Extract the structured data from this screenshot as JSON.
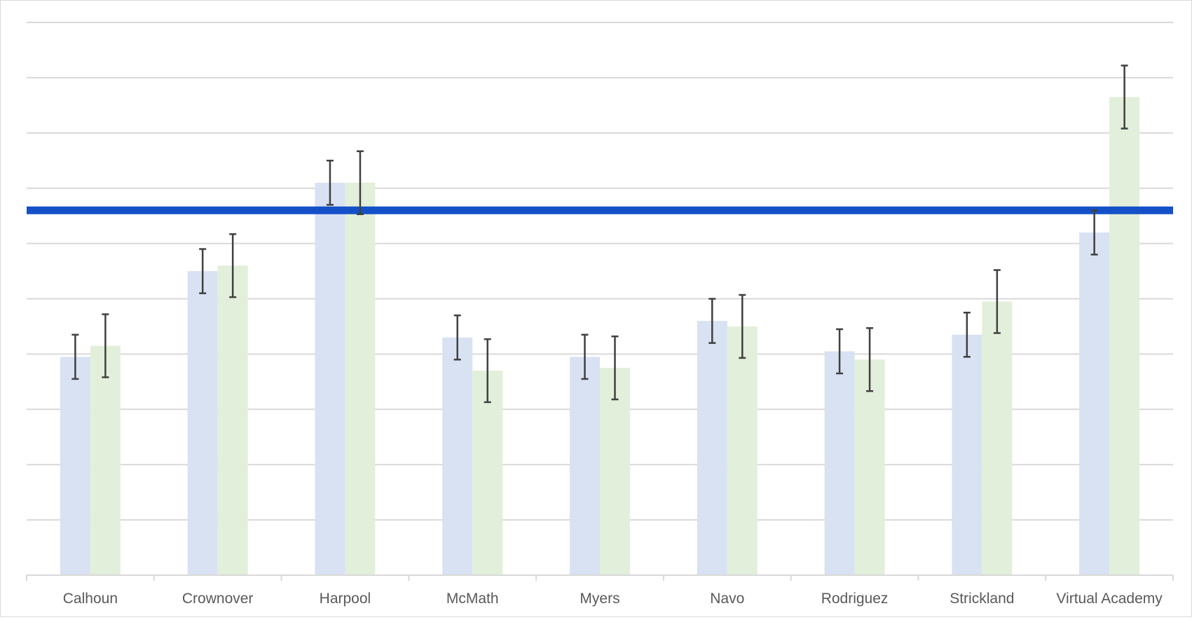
{
  "chart_data": {
    "type": "bar",
    "categories": [
      "Calhoun",
      "Crownover",
      "Harpool",
      "McMath",
      "Myers",
      "Navo",
      "Rodriguez",
      "Strickland",
      "Virtual Academy"
    ],
    "series": [
      {
        "values": [
          3.95,
          5.5,
          7.1,
          4.3,
          3.95,
          4.6,
          4.05,
          4.35,
          6.2
        ],
        "error": [
          0.4,
          0.4,
          0.4,
          0.4,
          0.4,
          0.4,
          0.4,
          0.4,
          0.4
        ],
        "color": "#d9e2f3"
      },
      {
        "values": [
          4.15,
          5.6,
          7.1,
          3.7,
          3.75,
          4.5,
          3.9,
          4.95,
          8.65
        ],
        "error": [
          0.57,
          0.57,
          0.57,
          0.57,
          0.57,
          0.57,
          0.57,
          0.57,
          0.57
        ],
        "color": "#e2efda"
      }
    ],
    "reference_line": {
      "value": 6.6,
      "color": "#1450c8"
    },
    "ylim": [
      0,
      10
    ],
    "gridlines": true,
    "title": "",
    "xlabel": "",
    "ylabel": ""
  }
}
